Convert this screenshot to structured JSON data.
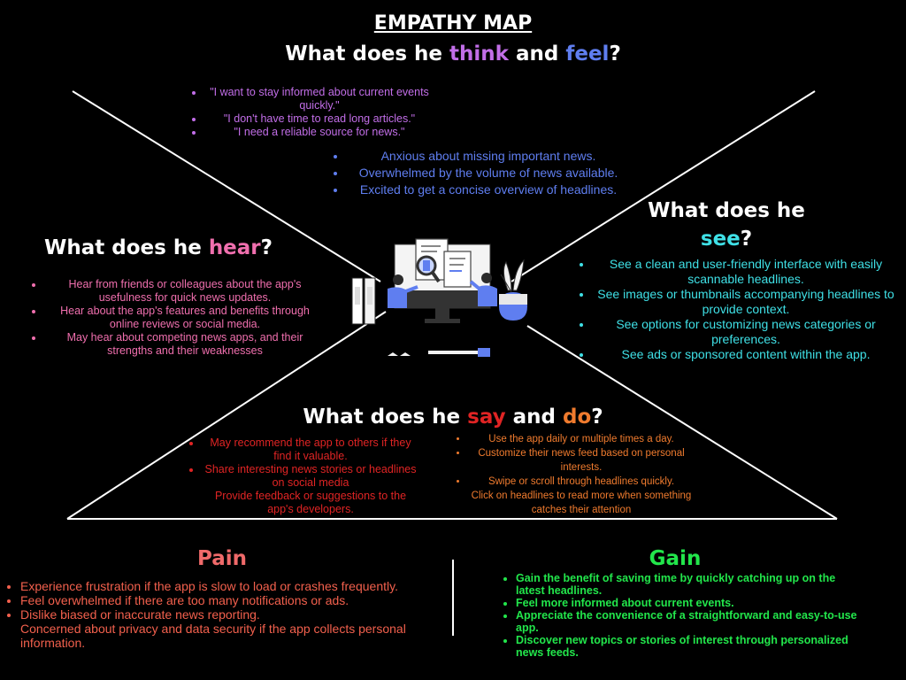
{
  "title": "EMPATHY MAP",
  "colors": {
    "background": "#000000",
    "think": "#c26ee8",
    "feel": "#5f7ef0",
    "hear": "#f06fae",
    "see": "#3fe0e6",
    "say": "#e02424",
    "do": "#f07b2e",
    "pain": "#f06a6a",
    "gain": "#22e64b"
  },
  "think_feel": {
    "heading_prefix": "What does he ",
    "think": "think",
    "and": " and ",
    "feel": "feel",
    "suffix": "?",
    "think_items": [
      "\"I want to stay informed about current events quickly.\"",
      "\"I don't have time to read long articles.\"",
      "\"I need a reliable source for news.\""
    ],
    "feel_items": [
      "Anxious about missing important news.",
      "Overwhelmed by the volume of news available.",
      "Excited to get a concise overview of headlines."
    ]
  },
  "hear": {
    "heading_prefix": "What does he ",
    "word": "hear",
    "suffix": "?",
    "items": [
      "Hear from friends or colleagues about the app's usefulness for quick news updates.",
      "Hear about the app's features and benefits through online reviews or social media.",
      "May hear about competing news apps, and their strengths and their weaknesses"
    ]
  },
  "see": {
    "heading_prefix": "What does he",
    "word": "see",
    "suffix": "?",
    "items": [
      "See a clean and user-friendly interface with easily scannable headlines.",
      "See images or thumbnails accompanying headlines to provide context.",
      "See options for customizing news categories or preferences.",
      "See ads or sponsored content within the app."
    ]
  },
  "say_do": {
    "heading_prefix": "What does he ",
    "say": "say",
    "and": " and ",
    "do": "do",
    "suffix": "?",
    "say_items": [
      "May recommend the app to others if they find it valuable.",
      "Share interesting news stories or headlines on social media"
    ],
    "say_extra": "Provide feedback or suggestions to the app's developers.",
    "do_items": [
      "Use the app daily or multiple times a day.",
      "Customize their news feed based on personal interests.",
      "Swipe or scroll through headlines quickly."
    ],
    "do_extra": "Click on headlines to read more when something catches their attention"
  },
  "pain": {
    "heading": "Pain",
    "items": [
      "Experience frustration if the app is slow to load or crashes frequently.",
      "Feel overwhelmed if there are too many notifications or ads.",
      "Dislike biased or inaccurate news reporting."
    ],
    "extra": "Concerned about privacy and data security if the app collects personal information."
  },
  "gain": {
    "heading": "Gain",
    "items": [
      "Gain the benefit of saving time by quickly catching up on the latest headlines.",
      "Feel more informed about current events.",
      "Appreciate the convenience of a straightforward and easy-to-use app.",
      "Discover new topics or stories of interest through personalized news feeds."
    ]
  },
  "illustration": {
    "icon": "people-at-computer-illustration"
  }
}
